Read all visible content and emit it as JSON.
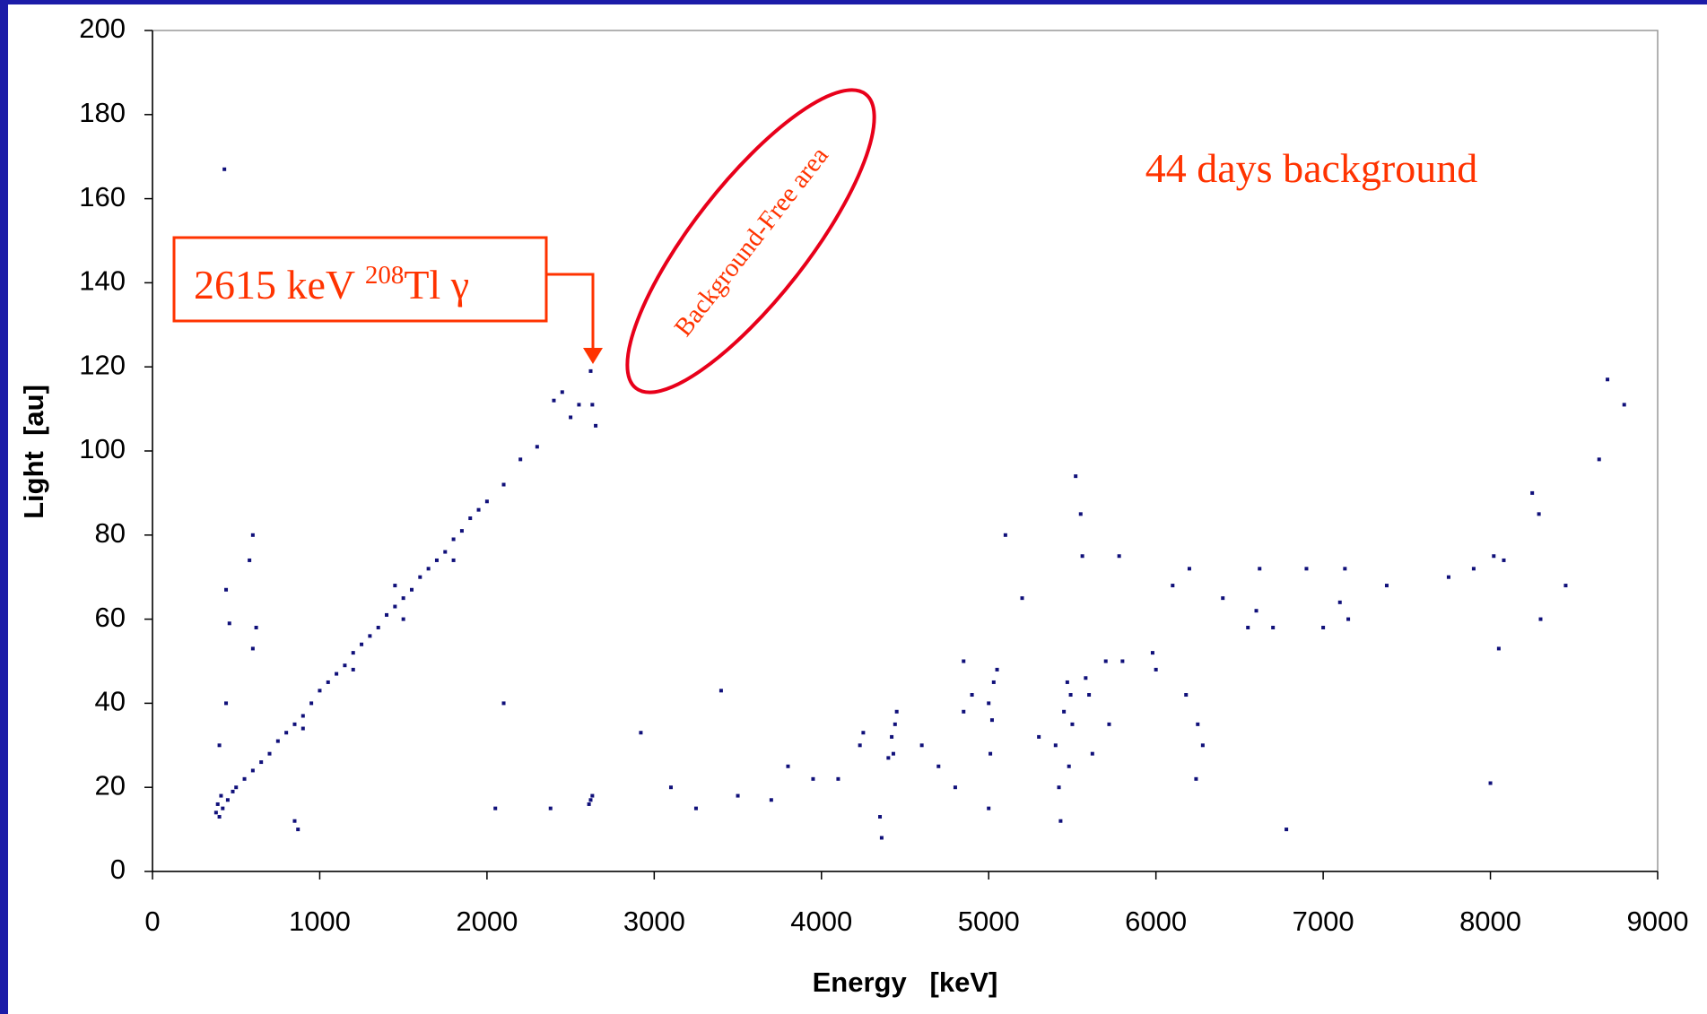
{
  "chart_data": {
    "type": "scatter",
    "xlabel": "Energy   [keV]",
    "ylabel": "Light  [au]",
    "xlim": [
      0,
      9000
    ],
    "xticks": [
      0,
      1000,
      2000,
      3000,
      4000,
      5000,
      6000,
      7000,
      8000,
      9000
    ],
    "ylim": [
      0,
      200
    ],
    "yticks": [
      0,
      20,
      40,
      60,
      80,
      100,
      120,
      140,
      160,
      180,
      200
    ],
    "color": "#10107a",
    "x": [
      380,
      390,
      400,
      410,
      420,
      450,
      480,
      500,
      550,
      600,
      650,
      700,
      750,
      800,
      850,
      900,
      950,
      1000,
      1050,
      1100,
      1150,
      1200,
      1250,
      1300,
      1350,
      1400,
      1450,
      1500,
      1550,
      1600,
      1650,
      1700,
      1750,
      1800,
      1850,
      1900,
      1950,
      2000,
      2100,
      2200,
      2300,
      2400,
      2450,
      2500,
      2550,
      2620,
      2630,
      2650,
      1450,
      1500,
      1800,
      1200,
      900,
      430,
      600,
      580,
      440,
      460,
      620,
      600,
      440,
      400,
      870,
      850,
      2100,
      2050,
      2380,
      2620,
      2630,
      2610,
      2920,
      3400,
      3100,
      3250,
      3500,
      3700,
      3800,
      3950,
      4100,
      4230,
      4250,
      4420,
      4440,
      4430,
      4450,
      4400,
      4350,
      4360,
      4600,
      4700,
      4800,
      4850,
      4850,
      4900,
      5000,
      5020,
      5030,
      5010,
      5000,
      5050,
      5100,
      5200,
      5300,
      5400,
      5420,
      5430,
      5450,
      5470,
      5480,
      5490,
      5500,
      5520,
      5550,
      5560,
      5580,
      5600,
      5620,
      5700,
      5720,
      5780,
      5800,
      5980,
      6000,
      6100,
      6180,
      6200,
      6240,
      6250,
      6280,
      6400,
      6550,
      6600,
      6620,
      6700,
      6780,
      6900,
      7000,
      7100,
      7130,
      7150,
      7380,
      7750,
      7900,
      8000,
      8020,
      8050,
      8080,
      8250,
      8290,
      8300,
      8450,
      8650,
      8700,
      8800
    ],
    "y": [
      14,
      16,
      13,
      18,
      15,
      17,
      19,
      20,
      22,
      24,
      26,
      28,
      31,
      33,
      35,
      37,
      40,
      43,
      45,
      47,
      49,
      52,
      54,
      56,
      58,
      61,
      63,
      65,
      67,
      70,
      72,
      74,
      76,
      79,
      81,
      84,
      86,
      88,
      92,
      98,
      101,
      112,
      114,
      108,
      111,
      119,
      111,
      106,
      68,
      60,
      74,
      48,
      34,
      167,
      80,
      74,
      67,
      59,
      58,
      53,
      40,
      30,
      10,
      12,
      40,
      15,
      15,
      17,
      18,
      16,
      33,
      43,
      20,
      15,
      18,
      17,
      25,
      22,
      22,
      30,
      33,
      32,
      35,
      28,
      38,
      27,
      13,
      8,
      30,
      25,
      20,
      38,
      50,
      42,
      40,
      36,
      45,
      28,
      15,
      48,
      80,
      65,
      32,
      30,
      20,
      12,
      38,
      45,
      25,
      42,
      35,
      94,
      85,
      75,
      46,
      42,
      28,
      50,
      35,
      75,
      50,
      52,
      48,
      68,
      42,
      72,
      22,
      35,
      30,
      65,
      58,
      62,
      72,
      58,
      10,
      72,
      58,
      64,
      72,
      60,
      68,
      70,
      72,
      21,
      75,
      53,
      74,
      90,
      85,
      60,
      68,
      98,
      117,
      111
    ],
    "annotation": [
      "2615 keV ",
      "208",
      "Tl γ"
    ],
    "ellipse_label": "Background-Free area",
    "note": "44 days background"
  }
}
